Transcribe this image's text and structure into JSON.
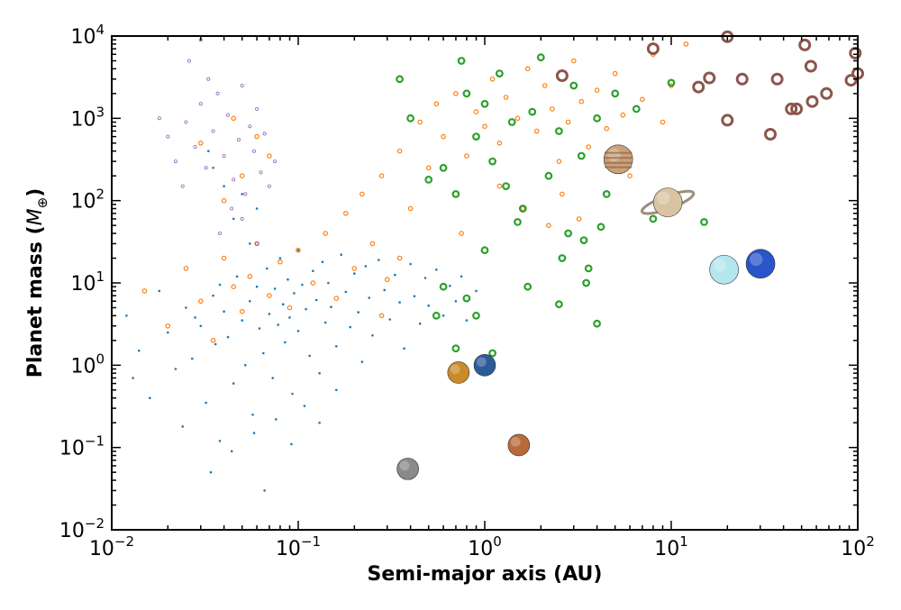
{
  "chart_data": {
    "type": "scatter",
    "title": "",
    "xlabel": "Semi-major axis (AU)",
    "ylabel": {
      "prefix": "Planet mass (",
      "symbol": "M",
      "subscript": "⊕",
      "suffix": ")"
    },
    "xscale": "log",
    "yscale": "log",
    "xlim": [
      0.01,
      100
    ],
    "ylim": [
      0.01,
      10000
    ],
    "x_ticks": [
      {
        "base": "10",
        "exp": "−2"
      },
      {
        "base": "10",
        "exp": "−1"
      },
      {
        "base": "10",
        "exp": "0"
      },
      {
        "base": "10",
        "exp": "1"
      },
      {
        "base": "10",
        "exp": "2"
      }
    ],
    "y_ticks": [
      {
        "base": "10",
        "exp": "−2"
      },
      {
        "base": "10",
        "exp": "−1"
      },
      {
        "base": "10",
        "exp": "0"
      },
      {
        "base": "10",
        "exp": "1"
      },
      {
        "base": "10",
        "exp": "2"
      },
      {
        "base": "10",
        "exp": "3"
      },
      {
        "base": "10",
        "exp": "4"
      }
    ],
    "grid": false,
    "legend": "none",
    "series": [
      {
        "color": "#1f77b4",
        "marker": "dot",
        "points": [
          [
            0.012,
            4.0
          ],
          [
            0.014,
            1.5
          ],
          [
            0.016,
            0.4
          ],
          [
            0.018,
            8.0
          ],
          [
            0.02,
            2.5
          ],
          [
            0.022,
            0.9
          ],
          [
            0.025,
            5.0
          ],
          [
            0.027,
            1.2
          ],
          [
            0.03,
            3.0
          ],
          [
            0.032,
            0.35
          ],
          [
            0.035,
            7.0
          ],
          [
            0.036,
            1.8
          ],
          [
            0.038,
            0.12
          ],
          [
            0.04,
            4.5
          ],
          [
            0.042,
            2.2
          ],
          [
            0.045,
            0.6
          ],
          [
            0.047,
            12.0
          ],
          [
            0.05,
            3.5
          ],
          [
            0.052,
            1.0
          ],
          [
            0.055,
            6.0
          ],
          [
            0.057,
            0.25
          ],
          [
            0.06,
            9.0
          ],
          [
            0.062,
            2.8
          ],
          [
            0.065,
            1.4
          ],
          [
            0.068,
            15.0
          ],
          [
            0.07,
            4.2
          ],
          [
            0.073,
            0.7
          ],
          [
            0.075,
            8.5
          ],
          [
            0.078,
            3.1
          ],
          [
            0.08,
            20.0
          ],
          [
            0.083,
            5.5
          ],
          [
            0.085,
            1.9
          ],
          [
            0.088,
            11.0
          ],
          [
            0.09,
            3.8
          ],
          [
            0.093,
            0.45
          ],
          [
            0.095,
            7.5
          ],
          [
            0.1,
            25.0
          ],
          [
            0.1,
            2.6
          ],
          [
            0.105,
            9.5
          ],
          [
            0.11,
            4.8
          ],
          [
            0.115,
            1.3
          ],
          [
            0.12,
            14.0
          ],
          [
            0.125,
            6.2
          ],
          [
            0.13,
            0.8
          ],
          [
            0.135,
            18.0
          ],
          [
            0.14,
            3.3
          ],
          [
            0.145,
            10.0
          ],
          [
            0.15,
            5.1
          ],
          [
            0.16,
            1.7
          ],
          [
            0.17,
            22.0
          ],
          [
            0.18,
            7.8
          ],
          [
            0.19,
            2.9
          ],
          [
            0.2,
            13.0
          ],
          [
            0.21,
            4.4
          ],
          [
            0.22,
            1.1
          ],
          [
            0.23,
            16.0
          ],
          [
            0.24,
            6.6
          ],
          [
            0.25,
            2.3
          ],
          [
            0.27,
            19.0
          ],
          [
            0.29,
            8.2
          ],
          [
            0.31,
            3.6
          ],
          [
            0.33,
            12.5
          ],
          [
            0.35,
            5.8
          ],
          [
            0.37,
            1.6
          ],
          [
            0.4,
            17.0
          ],
          [
            0.42,
            6.9
          ],
          [
            0.45,
            3.2
          ],
          [
            0.48,
            11.5
          ],
          [
            0.5,
            5.3
          ],
          [
            0.55,
            14.5
          ],
          [
            0.6,
            4.0
          ],
          [
            0.65,
            9.2
          ],
          [
            0.7,
            6.0
          ],
          [
            0.75,
            12.0
          ],
          [
            0.8,
            3.5
          ],
          [
            0.9,
            8.0
          ],
          [
            0.013,
            0.7
          ],
          [
            0.024,
            0.18
          ],
          [
            0.034,
            0.05
          ],
          [
            0.044,
            0.09
          ],
          [
            0.058,
            0.15
          ],
          [
            0.066,
            0.03
          ],
          [
            0.076,
            0.22
          ],
          [
            0.092,
            0.11
          ],
          [
            0.108,
            0.32
          ],
          [
            0.13,
            0.2
          ],
          [
            0.16,
            0.5
          ],
          [
            0.055,
            30.0
          ],
          [
            0.045,
            60.0
          ],
          [
            0.04,
            150.0
          ],
          [
            0.035,
            250.0
          ],
          [
            0.05,
            120.0
          ],
          [
            0.06,
            80.0
          ],
          [
            0.033,
            400.0
          ],
          [
            0.028,
            3.8
          ],
          [
            0.038,
            9.5
          ]
        ]
      },
      {
        "color": "#ff7f0e",
        "marker": "small-circle",
        "points": [
          [
            0.015,
            8.0
          ],
          [
            0.02,
            3.0
          ],
          [
            0.025,
            15.0
          ],
          [
            0.03,
            6.0
          ],
          [
            0.035,
            2.0
          ],
          [
            0.04,
            20.0
          ],
          [
            0.045,
            9.0
          ],
          [
            0.05,
            4.5
          ],
          [
            0.055,
            12.0
          ],
          [
            0.06,
            30.0
          ],
          [
            0.07,
            7.0
          ],
          [
            0.08,
            18.0
          ],
          [
            0.09,
            5.0
          ],
          [
            0.1,
            25.0
          ],
          [
            0.12,
            10.0
          ],
          [
            0.14,
            40.0
          ],
          [
            0.16,
            6.5
          ],
          [
            0.18,
            70.0
          ],
          [
            0.2,
            15.0
          ],
          [
            0.22,
            120.0
          ],
          [
            0.25,
            30.0
          ],
          [
            0.28,
            200.0
          ],
          [
            0.3,
            11.0
          ],
          [
            0.35,
            400.0
          ],
          [
            0.4,
            80.0
          ],
          [
            0.45,
            900.0
          ],
          [
            0.5,
            250.0
          ],
          [
            0.55,
            1500.0
          ],
          [
            0.6,
            600.0
          ],
          [
            0.7,
            2000.0
          ],
          [
            0.8,
            350.0
          ],
          [
            0.9,
            1200.0
          ],
          [
            1.0,
            800.0
          ],
          [
            1.1,
            3000.0
          ],
          [
            1.2,
            500.0
          ],
          [
            1.3,
            1800.0
          ],
          [
            1.5,
            1000.0
          ],
          [
            1.7,
            4000.0
          ],
          [
            1.9,
            700.0
          ],
          [
            2.1,
            2500.0
          ],
          [
            2.3,
            1300.0
          ],
          [
            2.5,
            300.0
          ],
          [
            2.8,
            900.0
          ],
          [
            3.0,
            5000.0
          ],
          [
            3.3,
            1600.0
          ],
          [
            3.6,
            450.0
          ],
          [
            4.0,
            2200.0
          ],
          [
            4.5,
            750.0
          ],
          [
            5.0,
            3500.0
          ],
          [
            5.5,
            1100.0
          ],
          [
            6.0,
            200.0
          ],
          [
            7.0,
            1700.0
          ],
          [
            8.0,
            6000.0
          ],
          [
            9.0,
            900.0
          ],
          [
            10.0,
            2500.0
          ],
          [
            12.0,
            8000.0
          ],
          [
            1.2,
            150.0
          ],
          [
            1.6,
            80.0
          ],
          [
            2.2,
            50.0
          ],
          [
            2.6,
            120.0
          ],
          [
            3.2,
            60.0
          ],
          [
            0.75,
            40.0
          ],
          [
            0.35,
            20.0
          ],
          [
            0.28,
            4.0
          ],
          [
            0.06,
            600.0
          ],
          [
            0.05,
            200.0
          ],
          [
            0.04,
            100.0
          ],
          [
            0.07,
            350.0
          ],
          [
            0.03,
            500.0
          ],
          [
            0.045,
            1000.0
          ]
        ]
      },
      {
        "color": "#9467bd",
        "marker": "tiny-circle",
        "points": [
          [
            0.02,
            600.0
          ],
          [
            0.022,
            300.0
          ],
          [
            0.025,
            900.0
          ],
          [
            0.028,
            450.0
          ],
          [
            0.03,
            1500.0
          ],
          [
            0.032,
            250.0
          ],
          [
            0.035,
            700.0
          ],
          [
            0.037,
            2000.0
          ],
          [
            0.04,
            350.0
          ],
          [
            0.042,
            1100.0
          ],
          [
            0.045,
            180.0
          ],
          [
            0.048,
            550.0
          ],
          [
            0.05,
            2500.0
          ],
          [
            0.052,
            120.0
          ],
          [
            0.055,
            800.0
          ],
          [
            0.058,
            400.0
          ],
          [
            0.06,
            1300.0
          ],
          [
            0.063,
            220.0
          ],
          [
            0.066,
            650.0
          ],
          [
            0.07,
            150.0
          ],
          [
            0.075,
            300.0
          ],
          [
            0.018,
            1000.0
          ],
          [
            0.026,
            5000.0
          ],
          [
            0.033,
            3000.0
          ],
          [
            0.044,
            80.0
          ],
          [
            0.05,
            60.0
          ],
          [
            0.06,
            30.0
          ],
          [
            0.038,
            40.0
          ],
          [
            0.03,
            9000.0
          ],
          [
            0.024,
            150.0
          ]
        ]
      },
      {
        "color": "#2ca02c",
        "marker": "ring",
        "points": [
          [
            0.35,
            3000.0
          ],
          [
            0.4,
            1000.0
          ],
          [
            0.5,
            180.0
          ],
          [
            0.6,
            250.0
          ],
          [
            0.7,
            120.0
          ],
          [
            0.75,
            5000.0
          ],
          [
            0.8,
            2000.0
          ],
          [
            0.9,
            600.0
          ],
          [
            1.0,
            1500.0
          ],
          [
            1.1,
            300.0
          ],
          [
            1.2,
            3500.0
          ],
          [
            1.3,
            150.0
          ],
          [
            1.4,
            900.0
          ],
          [
            1.6,
            80.0
          ],
          [
            1.8,
            1200.0
          ],
          [
            2.0,
            5500.0
          ],
          [
            2.2,
            200.0
          ],
          [
            2.5,
            700.0
          ],
          [
            2.8,
            40.0
          ],
          [
            3.0,
            2500.0
          ],
          [
            3.3,
            350.0
          ],
          [
            3.6,
            15.0
          ],
          [
            4.0,
            1000.0
          ],
          [
            4.5,
            120.0
          ],
          [
            5.0,
            2000.0
          ],
          [
            5.5,
            400.0
          ],
          [
            6.5,
            1300.0
          ],
          [
            8.0,
            60.0
          ],
          [
            10.0,
            2700.0
          ],
          [
            15.0,
            55.0
          ],
          [
            0.6,
            9.0
          ],
          [
            0.7,
            1.6
          ],
          [
            0.9,
            4.0
          ],
          [
            1.1,
            1.4
          ],
          [
            1.5,
            55.0
          ],
          [
            1.7,
            9.0
          ],
          [
            2.5,
            5.5
          ],
          [
            3.5,
            10.0
          ],
          [
            4.0,
            3.2
          ],
          [
            0.55,
            4.0
          ],
          [
            0.8,
            6.5
          ],
          [
            1.0,
            25.0
          ],
          [
            2.6,
            20.0
          ],
          [
            3.4,
            33.0
          ],
          [
            4.2,
            48.0
          ]
        ]
      },
      {
        "color": "#8c564b",
        "marker": "big-ring",
        "points": [
          [
            8.0,
            7000.0
          ],
          [
            14.0,
            2400.0
          ],
          [
            16.0,
            3100.0
          ],
          [
            20.0,
            950.0
          ],
          [
            20.0,
            9800.0
          ],
          [
            24.0,
            3000.0
          ],
          [
            34.0,
            640.0
          ],
          [
            37.0,
            3000.0
          ],
          [
            44.0,
            1300.0
          ],
          [
            47.0,
            1300.0
          ],
          [
            52.0,
            7800.0
          ],
          [
            56.0,
            4300.0
          ],
          [
            57.0,
            1600.0
          ],
          [
            68.0,
            2000.0
          ],
          [
            92.0,
            2900.0
          ],
          [
            97.0,
            6200.0
          ],
          [
            100.0,
            3500.0
          ],
          [
            2.6,
            3300.0
          ]
        ]
      }
    ],
    "solar_system": [
      {
        "name": "Mercury",
        "a": 0.387,
        "mass": 0.055,
        "color": "#8a8a8a"
      },
      {
        "name": "Venus",
        "a": 0.723,
        "mass": 0.815,
        "color": "#c98a2a"
      },
      {
        "name": "Earth",
        "a": 1.0,
        "mass": 1.0,
        "color": "#2c5a9a"
      },
      {
        "name": "Mars",
        "a": 1.524,
        "mass": 0.107,
        "color": "#b86a3a"
      },
      {
        "name": "Jupiter",
        "a": 5.2,
        "mass": 317.8,
        "color": "#c9a27a"
      },
      {
        "name": "Saturn",
        "a": 9.58,
        "mass": 95.2,
        "color": "#d8c4a0"
      },
      {
        "name": "Uranus",
        "a": 19.2,
        "mass": 14.5,
        "color": "#b4e6ee"
      },
      {
        "name": "Neptune",
        "a": 30.1,
        "mass": 17.1,
        "color": "#2a55c8"
      }
    ]
  }
}
